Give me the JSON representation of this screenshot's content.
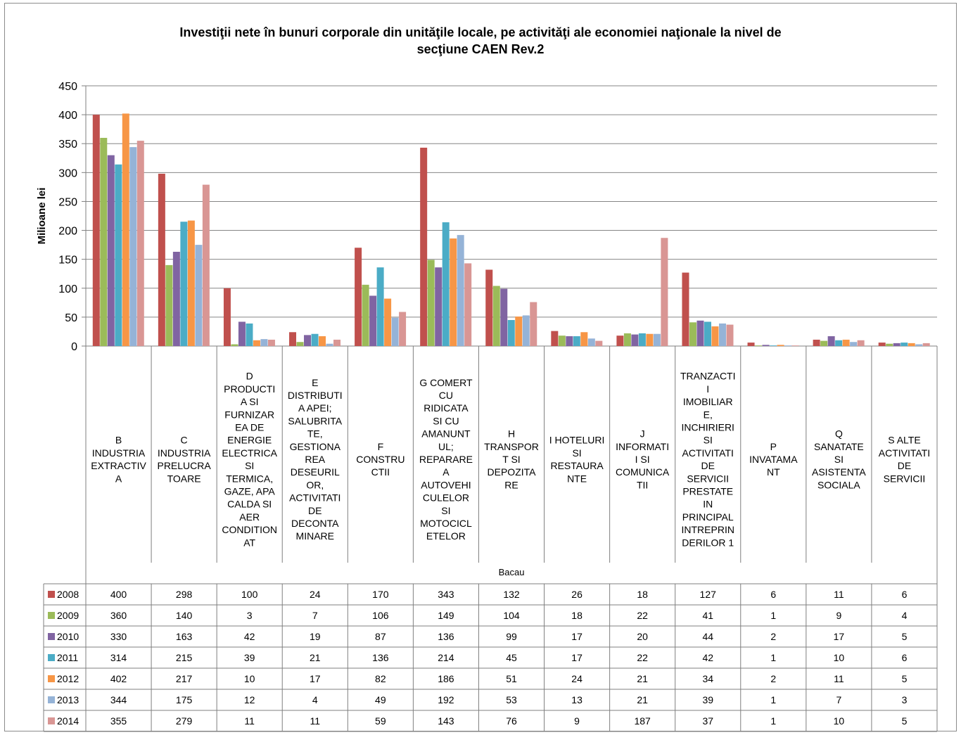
{
  "chart_data": {
    "type": "bar",
    "title": "Investiţii nete în bunuri corporale din unităţile locale, pe activităţi ale economiei naţionale la nivel de secţiune CAEN Rev.2",
    "title_lines": [
      "Investiţii nete în bunuri corporale din unităţile locale, pe activităţi ale economiei naţionale la nivel de",
      "secţiune CAEN Rev.2"
    ],
    "ylabel": "Milioane lei",
    "xlabel": "Bacau",
    "ylim": [
      0,
      450
    ],
    "yticks": [
      0,
      50,
      100,
      150,
      200,
      250,
      300,
      350,
      400,
      450
    ],
    "grid": true,
    "legend": "data-table",
    "categories": [
      "B INDUSTRIA EXTRACTIVA",
      "C INDUSTRIA PRELUCRATOARE",
      "D PRODUCTIA SI FURNIZAREA DE ENERGIE ELECTRICA SI TERMICA, GAZE, APA CALDA SI AER CONDITIONAT",
      "E DISTRIBUTIA APEI; SALUBRITATE, GESTIONAREA DESEURILOR, ACTIVITATI DE DECONTAMINARE",
      "F CONSTRUCTII",
      "G COMERT CU RIDICATA SI CU AMANUNTUL; REPARAREA AUTOVEHICULELOR SI MOTOCICLETELOR",
      "H TRANSPORT SI DEPOZITARE",
      "I HOTELURI SI RESTAURANTE",
      "J INFORMATII SI COMUNICATII",
      "TRANZACTII IMOBILIARE, INCHIRIERI SI ACTIVITATI DE SERVICII PRESTATE IN PRINCIPAL INTREPRINDERILOR 1",
      "P INVATAMANT",
      "Q SANATATE SI ASISTENTA SOCIALA",
      "S ALTE ACTIVITATI DE SERVICII"
    ],
    "category_lines": [
      [
        "B",
        "INDUSTRIA",
        "EXTRACTIV",
        "A"
      ],
      [
        "C",
        "INDUSTRIA",
        "PRELUCRA",
        "TOARE"
      ],
      [
        "D",
        "PRODUCTI",
        "A SI",
        "FURNIZAR",
        "EA DE",
        "ENERGIE",
        "ELECTRICA",
        "SI",
        "TERMICA,",
        "GAZE, APA",
        "CALDA SI",
        "AER",
        "CONDITION",
        "AT"
      ],
      [
        "E",
        "DISTRIBUTI",
        "A APEI;",
        "SALUBRITA",
        "TE,",
        "GESTIONA",
        "REA",
        "DESEURIL",
        "OR,",
        "ACTIVITATI",
        "DE",
        "DECONTA",
        "MINARE"
      ],
      [
        "F",
        "CONSTRU",
        "CTII"
      ],
      [
        "G COMERT",
        "CU",
        "RIDICATA",
        "SI CU",
        "AMANUNT",
        "UL;",
        "REPARARE",
        "A",
        "AUTOVEHI",
        "CULELOR",
        "SI",
        "MOTOCICL",
        "ETELOR"
      ],
      [
        "H",
        "TRANSPOR",
        "T SI",
        "DEPOZITA",
        "RE"
      ],
      [
        "I HOTELURI",
        "SI",
        "RESTAURA",
        "NTE"
      ],
      [
        "J",
        "INFORMATI",
        "I SI",
        "COMUNICA",
        "TII"
      ],
      [
        "TRANZACTI",
        "I",
        "IMOBILIAR",
        "E,",
        "INCHIRIERI",
        "SI",
        "ACTIVITATI",
        "DE",
        "SERVICII",
        "PRESTATE",
        "IN",
        "PRINCIPAL",
        "INTREPRIN",
        "DERILOR 1"
      ],
      [
        "P",
        "INVATAMA",
        "NT"
      ],
      [
        "Q",
        "SANATATE",
        "SI",
        "ASISTENTA",
        "SOCIALA"
      ],
      [
        "S ALTE",
        "ACTIVITATI",
        "DE",
        "SERVICII"
      ]
    ],
    "series": [
      {
        "name": "2008",
        "color": "#c0504d",
        "values": [
          400,
          298,
          100,
          24,
          170,
          343,
          132,
          26,
          18,
          127,
          6,
          11,
          6
        ]
      },
      {
        "name": "2009",
        "color": "#9bbb59",
        "values": [
          360,
          140,
          3,
          7,
          106,
          149,
          104,
          18,
          22,
          41,
          1,
          9,
          4
        ]
      },
      {
        "name": "2010",
        "color": "#8064a2",
        "values": [
          330,
          163,
          42,
          19,
          87,
          136,
          99,
          17,
          20,
          44,
          2,
          17,
          5
        ]
      },
      {
        "name": "2011",
        "color": "#4bacc6",
        "values": [
          314,
          215,
          39,
          21,
          136,
          214,
          45,
          17,
          22,
          42,
          1,
          10,
          6
        ]
      },
      {
        "name": "2012",
        "color": "#f79646",
        "values": [
          402,
          217,
          10,
          17,
          82,
          186,
          51,
          24,
          21,
          34,
          2,
          11,
          5
        ]
      },
      {
        "name": "2013",
        "color": "#95b3d7",
        "values": [
          344,
          175,
          12,
          4,
          49,
          192,
          53,
          13,
          21,
          39,
          1,
          7,
          3
        ]
      },
      {
        "name": "2014",
        "color": "#d99694",
        "values": [
          355,
          279,
          11,
          11,
          59,
          143,
          76,
          9,
          187,
          37,
          1,
          10,
          5
        ]
      }
    ]
  }
}
